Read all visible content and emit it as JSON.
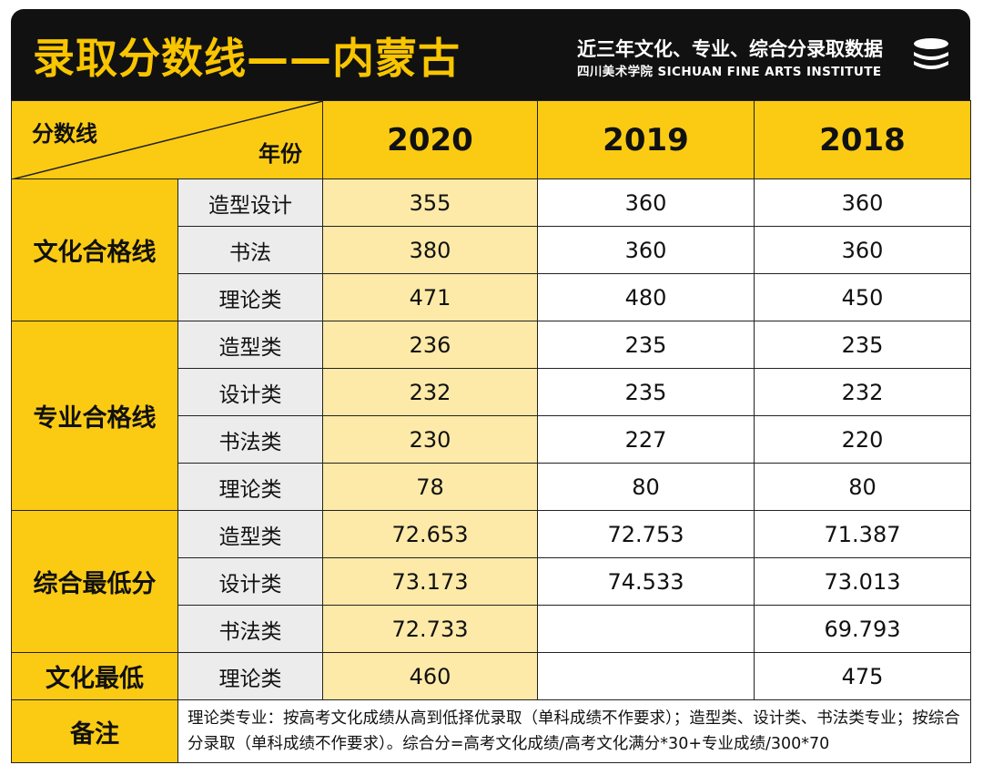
{
  "header": {
    "title": "录取分数线——内蒙古",
    "subtitle": "近三年文化、专业、综合分录取数据",
    "institute": "四川美术学院 SICHUAN FINE ARTS INSTITUTE",
    "logo_icon": "stacked-discs-icon"
  },
  "colors": {
    "accent": "#fbcb14",
    "header_bg": "#111111",
    "highlight_col": "#fdeaa8",
    "label_bg": "#ececec"
  },
  "corner": {
    "row_label": "分数线",
    "col_label": "年份"
  },
  "chart_data": {
    "type": "table",
    "title": "录取分数线——内蒙古",
    "columns": [
      "2020",
      "2019",
      "2018"
    ],
    "groups": [
      {
        "name": "文化合格线",
        "rows": [
          {
            "label": "造型设计",
            "values": [
              "355",
              "360",
              "360"
            ]
          },
          {
            "label": "书法",
            "values": [
              "380",
              "360",
              "360"
            ]
          },
          {
            "label": "理论类",
            "values": [
              "471",
              "480",
              "450"
            ]
          }
        ]
      },
      {
        "name": "专业合格线",
        "rows": [
          {
            "label": "造型类",
            "values": [
              "236",
              "235",
              "235"
            ]
          },
          {
            "label": "设计类",
            "values": [
              "232",
              "235",
              "232"
            ]
          },
          {
            "label": "书法类",
            "values": [
              "230",
              "227",
              "220"
            ]
          },
          {
            "label": "理论类",
            "values": [
              "78",
              "80",
              "80"
            ]
          }
        ]
      },
      {
        "name": "综合最低分",
        "rows": [
          {
            "label": "造型类",
            "values": [
              "72.653",
              "72.753",
              "71.387"
            ]
          },
          {
            "label": "设计类",
            "values": [
              "73.173",
              "74.533",
              "73.013"
            ]
          },
          {
            "label": "书法类",
            "values": [
              "72.733",
              "",
              "69.793"
            ]
          }
        ]
      },
      {
        "name": "文化最低",
        "rows": [
          {
            "label": "理论类",
            "values": [
              "460",
              "",
              "475"
            ]
          }
        ]
      }
    ],
    "note_label": "备注",
    "note": "理论类专业：按高考文化成绩从高到低择优录取（单科成绩不作要求）；造型类、设计类、书法类专业；按综合分录取（单科成绩不作要求）。综合分=高考文化成绩/高考文化满分*30+专业成绩/300*70"
  }
}
